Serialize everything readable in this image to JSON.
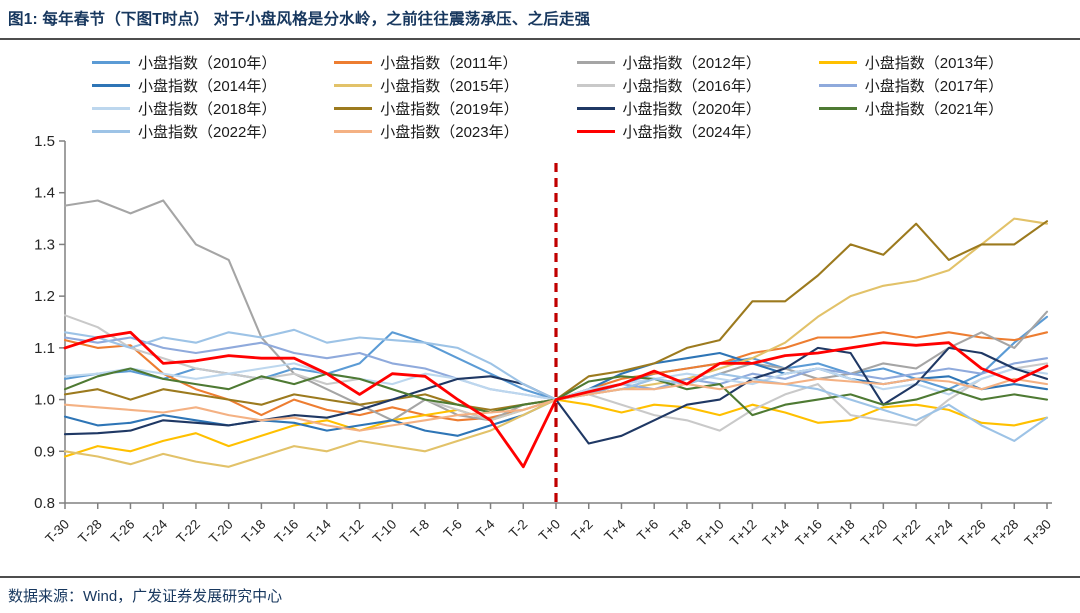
{
  "title": "图1: 每年春节（下图T时点） 对于小盘风格是分水岭，之前往往震荡承压、之后走强",
  "source": "数据来源：Wind，广发证券发展研究中心",
  "chart_data": {
    "type": "line",
    "title": "",
    "xlabel": "",
    "ylabel": "",
    "ylim": [
      0.8,
      1.5
    ],
    "y_ticks": [
      0.8,
      0.9,
      1.0,
      1.1,
      1.2,
      1.3,
      1.4,
      1.5
    ],
    "grid": false,
    "legend_position": "top",
    "x_labels": [
      "T-30",
      "T-28",
      "T-26",
      "T-24",
      "T-22",
      "T-20",
      "T-18",
      "T-16",
      "T-14",
      "T-12",
      "T-10",
      "T-8",
      "T-6",
      "T-4",
      "T-2",
      "T+0",
      "T+2",
      "T+4",
      "T+6",
      "T+8",
      "T+10",
      "T+12",
      "T+14",
      "T+16",
      "T+18",
      "T+20",
      "T+22",
      "T+24",
      "T+26",
      "T+28",
      "T+30"
    ],
    "marker_line": {
      "x_label": "T+0",
      "color": "#C00000",
      "style": "dashed"
    },
    "series": [
      {
        "name": "小盘指数（2010年）",
        "color": "#5B9BD5",
        "values": [
          1.04,
          1.05,
          1.055,
          1.04,
          1.06,
          1.05,
          1.04,
          1.06,
          1.05,
          1.07,
          1.13,
          1.11,
          1.08,
          1.05,
          1.02,
          1.0,
          1.01,
          1.03,
          1.05,
          1.06,
          1.07,
          1.08,
          1.06,
          1.07,
          1.05,
          1.06,
          1.04,
          1.02,
          1.05,
          1.11,
          1.16
        ]
      },
      {
        "name": "小盘指数（2011年）",
        "color": "#ED7D31",
        "values": [
          1.115,
          1.1,
          1.105,
          1.05,
          1.02,
          1.0,
          0.97,
          1.0,
          0.98,
          0.97,
          0.985,
          0.97,
          0.96,
          0.965,
          0.98,
          1.0,
          1.02,
          1.04,
          1.05,
          1.06,
          1.07,
          1.09,
          1.1,
          1.12,
          1.12,
          1.13,
          1.12,
          1.13,
          1.12,
          1.115,
          1.13
        ]
      },
      {
        "name": "小盘指数（2012年）",
        "color": "#A5A5A5",
        "values": [
          1.375,
          1.385,
          1.36,
          1.385,
          1.3,
          1.27,
          1.12,
          1.05,
          1.02,
          0.99,
          0.96,
          1.0,
          0.97,
          0.96,
          0.99,
          1.0,
          1.01,
          1.02,
          1.04,
          1.03,
          1.05,
          1.07,
          1.06,
          1.04,
          1.05,
          1.07,
          1.06,
          1.1,
          1.13,
          1.1,
          1.17
        ]
      },
      {
        "name": "小盘指数（2013年）",
        "color": "#FFC000",
        "values": [
          0.89,
          0.91,
          0.9,
          0.92,
          0.935,
          0.91,
          0.93,
          0.95,
          0.96,
          0.94,
          0.96,
          0.97,
          0.98,
          0.96,
          0.98,
          1.0,
          0.99,
          0.975,
          0.99,
          0.985,
          0.97,
          0.99,
          0.975,
          0.955,
          0.96,
          0.985,
          0.99,
          0.98,
          0.955,
          0.95,
          0.965
        ]
      },
      {
        "name": "小盘指数（2014年）",
        "color": "#2E75B6",
        "values": [
          0.967,
          0.95,
          0.955,
          0.97,
          0.96,
          0.95,
          0.96,
          0.955,
          0.94,
          0.95,
          0.96,
          0.94,
          0.93,
          0.95,
          0.97,
          1.0,
          1.02,
          1.05,
          1.07,
          1.08,
          1.09,
          1.07,
          1.05,
          1.06,
          1.04,
          1.03,
          1.04,
          1.045,
          1.02,
          1.03,
          1.02
        ]
      },
      {
        "name": "小盘指数（2015年）",
        "color": "#E2C269",
        "values": [
          0.9,
          0.89,
          0.875,
          0.895,
          0.88,
          0.87,
          0.89,
          0.91,
          0.9,
          0.92,
          0.91,
          0.9,
          0.92,
          0.94,
          0.97,
          1.0,
          1.01,
          1.02,
          1.03,
          1.04,
          1.06,
          1.08,
          1.11,
          1.16,
          1.2,
          1.22,
          1.23,
          1.25,
          1.3,
          1.35,
          1.34
        ]
      },
      {
        "name": "小盘指数（2016年）",
        "color": "#C9C9C9",
        "values": [
          1.163,
          1.14,
          1.1,
          1.08,
          1.06,
          1.05,
          1.04,
          1.05,
          1.03,
          1.04,
          1.02,
          1.0,
          0.98,
          0.96,
          0.98,
          1.0,
          1.01,
          0.99,
          0.97,
          0.96,
          0.94,
          0.98,
          1.01,
          1.03,
          0.97,
          0.96,
          0.95,
          1.0,
          1.04,
          1.06,
          1.07
        ]
      },
      {
        "name": "小盘指数（2017年）",
        "color": "#8FAADC",
        "values": [
          1.12,
          1.11,
          1.12,
          1.1,
          1.09,
          1.1,
          1.11,
          1.09,
          1.08,
          1.09,
          1.07,
          1.06,
          1.04,
          1.02,
          1.01,
          1.0,
          1.01,
          1.03,
          1.02,
          1.04,
          1.03,
          1.05,
          1.04,
          1.06,
          1.05,
          1.04,
          1.05,
          1.06,
          1.05,
          1.07,
          1.08
        ]
      },
      {
        "name": "小盘指数（2018年）",
        "color": "#BDD7EE",
        "values": [
          1.045,
          1.05,
          1.06,
          1.05,
          1.04,
          1.05,
          1.06,
          1.07,
          1.05,
          1.04,
          1.03,
          1.05,
          1.04,
          1.02,
          1.01,
          1.0,
          1.02,
          1.03,
          1.04,
          1.05,
          1.04,
          1.03,
          1.05,
          1.06,
          1.04,
          1.02,
          1.03,
          1.01,
          1.04,
          1.06,
          1.05
        ]
      },
      {
        "name": "小盘指数（2019年）",
        "color": "#9C7A1E",
        "values": [
          1.01,
          1.02,
          1.0,
          1.02,
          1.01,
          1.0,
          0.99,
          1.01,
          1.0,
          0.99,
          1.0,
          1.01,
          0.99,
          0.98,
          0.99,
          1.0,
          1.045,
          1.055,
          1.07,
          1.1,
          1.115,
          1.19,
          1.19,
          1.24,
          1.3,
          1.28,
          1.34,
          1.27,
          1.3,
          1.3,
          1.345
        ]
      },
      {
        "name": "小盘指数（2020年）",
        "color": "#1F3864",
        "values": [
          0.933,
          0.935,
          0.94,
          0.96,
          0.955,
          0.95,
          0.96,
          0.97,
          0.965,
          0.98,
          1.0,
          1.02,
          1.04,
          1.045,
          1.03,
          1.0,
          0.915,
          0.93,
          0.96,
          0.99,
          1.0,
          1.04,
          1.06,
          1.1,
          1.09,
          0.99,
          1.03,
          1.1,
          1.09,
          1.06,
          1.04
        ]
      },
      {
        "name": "小盘指数（2021年）",
        "color": "#4E7A33",
        "values": [
          1.02,
          1.045,
          1.06,
          1.04,
          1.03,
          1.02,
          1.045,
          1.03,
          1.05,
          1.04,
          1.02,
          1.0,
          0.99,
          0.975,
          0.99,
          1.0,
          1.035,
          1.045,
          1.04,
          1.02,
          1.03,
          0.97,
          0.99,
          1.0,
          1.01,
          0.99,
          1.0,
          1.02,
          1.0,
          1.01,
          1.0
        ]
      },
      {
        "name": "小盘指数（2022年）",
        "color": "#9DC3E6",
        "values": [
          1.13,
          1.12,
          1.1,
          1.12,
          1.11,
          1.13,
          1.12,
          1.135,
          1.11,
          1.12,
          1.115,
          1.11,
          1.1,
          1.07,
          1.03,
          1.0,
          1.01,
          1.02,
          1.04,
          1.03,
          1.05,
          1.04,
          1.03,
          1.02,
          1.0,
          0.98,
          0.96,
          0.99,
          0.95,
          0.92,
          0.965
        ]
      },
      {
        "name": "小盘指数（2023年）",
        "color": "#F4B183",
        "values": [
          0.99,
          0.985,
          0.98,
          0.975,
          0.985,
          0.97,
          0.96,
          0.965,
          0.95,
          0.94,
          0.95,
          0.96,
          0.97,
          0.975,
          0.98,
          1.0,
          1.01,
          1.02,
          1.02,
          1.03,
          1.02,
          1.035,
          1.03,
          1.04,
          1.035,
          1.03,
          1.04,
          1.035,
          1.02,
          1.04,
          1.03
        ]
      },
      {
        "name": "小盘指数（2024年）",
        "color": "#FF0000",
        "values": [
          1.1,
          1.12,
          1.13,
          1.07,
          1.075,
          1.085,
          1.08,
          1.08,
          1.05,
          1.01,
          1.05,
          1.045,
          1.0,
          0.96,
          0.87,
          1.0,
          1.015,
          1.03,
          1.055,
          1.03,
          1.07,
          1.07,
          1.085,
          1.09,
          1.1,
          1.11,
          1.105,
          1.11,
          1.06,
          1.035,
          1.065
        ]
      }
    ]
  }
}
